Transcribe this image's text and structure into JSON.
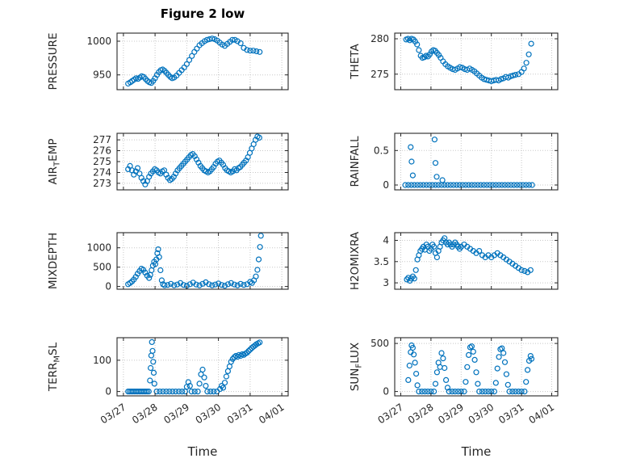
{
  "title": "Figure 2 low",
  "marker_color": "#0072BD",
  "x_axis": {
    "label": "Time",
    "lim": [
      -0.2,
      5.2
    ],
    "tick_values": [
      0,
      1,
      2,
      3,
      4,
      5
    ],
    "tick_labels": [
      "03/27",
      "03/28",
      "03/29",
      "03/30",
      "03/31",
      "04/01"
    ]
  },
  "chart_data": [
    {
      "name": "pressure",
      "type": "scatter",
      "ylabel_pre": "PRESSURE",
      "ylabel_sub": "",
      "ylabel_post": "",
      "ylim": [
        928,
        1012
      ],
      "yticks": [
        950,
        1000
      ],
      "x": [
        0.15,
        0.22,
        0.28,
        0.34,
        0.4,
        0.46,
        0.52,
        0.58,
        0.64,
        0.7,
        0.76,
        0.82,
        0.88,
        0.94,
        1.0,
        1.06,
        1.12,
        1.18,
        1.24,
        1.3,
        1.36,
        1.42,
        1.48,
        1.54,
        1.6,
        1.68,
        1.76,
        1.84,
        1.92,
        2.0,
        2.08,
        2.16,
        2.24,
        2.32,
        2.4,
        2.48,
        2.56,
        2.64,
        2.72,
        2.8,
        2.88,
        2.96,
        3.04,
        3.12,
        3.2,
        3.28,
        3.36,
        3.44,
        3.52,
        3.6,
        3.7,
        3.8,
        3.9,
        4.0,
        4.1,
        4.2,
        4.3
      ],
      "y": [
        937,
        939,
        941,
        943,
        945,
        944,
        946,
        948,
        947,
        944,
        941,
        939,
        938,
        941,
        945,
        950,
        954,
        957,
        958,
        956,
        953,
        950,
        947,
        945,
        946,
        949,
        953,
        957,
        961,
        966,
        972,
        978,
        984,
        989,
        994,
        997,
        1000,
        1002,
        1003,
        1004,
        1003,
        1001,
        998,
        995,
        993,
        996,
        999,
        1002,
        1002,
        1000,
        997,
        990,
        987,
        986,
        986,
        985,
        984
      ]
    },
    {
      "name": "theta",
      "type": "scatter",
      "ylabel_pre": "THETA",
      "ylabel_sub": "",
      "ylabel_post": "",
      "ylim": [
        272.8,
        280.8
      ],
      "yticks": [
        275,
        280
      ],
      "x": [
        0.18,
        0.24,
        0.3,
        0.36,
        0.42,
        0.48,
        0.54,
        0.6,
        0.66,
        0.72,
        0.78,
        0.84,
        0.9,
        0.96,
        1.02,
        1.08,
        1.14,
        1.2,
        1.26,
        1.32,
        1.4,
        1.48,
        1.56,
        1.64,
        1.72,
        1.8,
        1.88,
        1.96,
        2.04,
        2.12,
        2.2,
        2.28,
        2.36,
        2.44,
        2.52,
        2.6,
        2.68,
        2.76,
        2.84,
        2.92,
        3.0,
        3.08,
        3.16,
        3.24,
        3.32,
        3.4,
        3.48,
        3.56,
        3.64,
        3.72,
        3.8,
        3.9,
        4.0,
        4.08,
        4.16,
        4.24,
        4.32
      ],
      "y": [
        279.9,
        280.0,
        279.8,
        280.0,
        279.9,
        279.6,
        279.2,
        278.4,
        277.6,
        277.3,
        277.4,
        277.6,
        277.5,
        277.8,
        278.2,
        278.4,
        278.3,
        278.0,
        277.7,
        277.3,
        276.8,
        276.4,
        276.1,
        275.9,
        275.7,
        275.6,
        275.8,
        276.0,
        275.9,
        275.7,
        275.6,
        275.8,
        275.6,
        275.4,
        275.1,
        274.8,
        274.5,
        274.3,
        274.2,
        274.1,
        274.0,
        274.1,
        274.2,
        274.1,
        274.3,
        274.4,
        274.6,
        274.5,
        274.7,
        274.8,
        274.9,
        275.0,
        275.3,
        275.8,
        276.6,
        277.8,
        279.3
      ]
    },
    {
      "name": "air_temp",
      "type": "scatter",
      "ylabel_pre": "AIR",
      "ylabel_sub": "T",
      "ylabel_post": "EMP",
      "ylim": [
        272.4,
        277.6
      ],
      "yticks": [
        273,
        274,
        275,
        276,
        277
      ],
      "x": [
        0.15,
        0.21,
        0.27,
        0.33,
        0.39,
        0.45,
        0.51,
        0.57,
        0.63,
        0.69,
        0.75,
        0.81,
        0.87,
        0.93,
        0.99,
        1.05,
        1.11,
        1.17,
        1.23,
        1.29,
        1.35,
        1.41,
        1.47,
        1.53,
        1.59,
        1.65,
        1.71,
        1.77,
        1.83,
        1.89,
        1.95,
        2.01,
        2.07,
        2.13,
        2.19,
        2.25,
        2.31,
        2.37,
        2.43,
        2.49,
        2.55,
        2.61,
        2.67,
        2.73,
        2.79,
        2.85,
        2.91,
        2.97,
        3.03,
        3.09,
        3.15,
        3.21,
        3.27,
        3.33,
        3.39,
        3.45,
        3.51,
        3.57,
        3.63,
        3.69,
        3.75,
        3.81,
        3.87,
        3.93,
        3.99,
        4.05,
        4.11,
        4.17,
        4.23,
        4.29
      ],
      "y": [
        274.3,
        274.6,
        274.2,
        273.8,
        274.1,
        274.4,
        273.9,
        273.5,
        273.2,
        272.9,
        273.2,
        273.6,
        273.9,
        274.1,
        274.3,
        274.2,
        274.0,
        273.9,
        274.1,
        274.2,
        273.8,
        273.5,
        273.3,
        273.4,
        273.6,
        273.9,
        274.2,
        274.4,
        274.6,
        274.8,
        275.0,
        275.2,
        275.4,
        275.6,
        275.7,
        275.5,
        275.2,
        274.9,
        274.6,
        274.4,
        274.2,
        274.1,
        274.0,
        274.1,
        274.3,
        274.5,
        274.8,
        275.0,
        275.1,
        274.9,
        274.7,
        274.4,
        274.2,
        274.1,
        274.0,
        274.1,
        274.3,
        274.2,
        274.4,
        274.5,
        274.7,
        274.9,
        275.1,
        275.4,
        275.8,
        276.2,
        276.6,
        277.0,
        277.3,
        277.2
      ]
    },
    {
      "name": "rainfall",
      "type": "scatter",
      "ylabel_pre": "RAINFALL",
      "ylabel_sub": "",
      "ylabel_post": "",
      "ylim": [
        -0.07,
        0.75
      ],
      "yticks": [
        0,
        0.5
      ],
      "x": [
        0.15,
        0.25,
        0.35,
        0.45,
        0.55,
        0.65,
        0.75,
        0.85,
        0.95,
        1.05,
        1.15,
        1.25,
        1.35,
        1.45,
        1.55,
        1.65,
        1.75,
        1.85,
        1.95,
        2.05,
        2.15,
        2.25,
        2.35,
        2.45,
        2.55,
        2.65,
        2.75,
        2.85,
        2.95,
        3.05,
        3.15,
        3.25,
        3.35,
        3.45,
        3.55,
        3.65,
        3.75,
        3.85,
        3.95,
        4.05,
        4.15,
        4.25,
        4.35,
        0.33,
        0.36,
        0.4,
        1.12,
        1.15,
        1.19,
        1.38
      ],
      "y": [
        0,
        0,
        0,
        0,
        0,
        0,
        0,
        0,
        0,
        0,
        0,
        0,
        0,
        0,
        0,
        0,
        0,
        0,
        0,
        0,
        0,
        0,
        0,
        0,
        0,
        0,
        0,
        0,
        0,
        0,
        0,
        0,
        0,
        0,
        0,
        0,
        0,
        0,
        0,
        0,
        0,
        0,
        0,
        0.55,
        0.34,
        0.14,
        0.66,
        0.32,
        0.12,
        0.07
      ]
    },
    {
      "name": "mixdepth",
      "type": "scatter",
      "ylabel_pre": "MIXDEPTH",
      "ylabel_sub": "",
      "ylabel_post": "",
      "ylim": [
        -70,
        1390
      ],
      "yticks": [
        0,
        500,
        1000
      ],
      "x": [
        0.15,
        0.21,
        0.27,
        0.33,
        0.39,
        0.45,
        0.51,
        0.57,
        0.63,
        0.69,
        0.75,
        0.81,
        0.85,
        0.89,
        0.93,
        0.97,
        1.01,
        1.04,
        1.07,
        1.1,
        1.13,
        1.17,
        1.21,
        1.25,
        1.3,
        1.4,
        1.5,
        1.6,
        1.7,
        1.8,
        1.9,
        2.0,
        2.1,
        2.2,
        2.3,
        2.4,
        2.5,
        2.6,
        2.7,
        2.8,
        2.9,
        3.0,
        3.1,
        3.2,
        3.3,
        3.4,
        3.5,
        3.6,
        3.7,
        3.8,
        3.9,
        4.0,
        4.06,
        4.12,
        4.18,
        4.23,
        4.27,
        4.31,
        4.34
      ],
      "y": [
        60,
        90,
        130,
        180,
        250,
        330,
        400,
        460,
        430,
        360,
        280,
        220,
        300,
        420,
        540,
        640,
        580,
        700,
        860,
        960,
        760,
        420,
        160,
        60,
        30,
        40,
        70,
        30,
        50,
        90,
        40,
        20,
        60,
        100,
        50,
        30,
        70,
        110,
        60,
        30,
        50,
        80,
        40,
        20,
        60,
        90,
        50,
        30,
        70,
        40,
        60,
        120,
        90,
        160,
        260,
        430,
        700,
        1020,
        1310
      ]
    },
    {
      "name": "h2omixra",
      "type": "scatter",
      "ylabel_pre": "H2OMIXRA",
      "ylabel_sub": "",
      "ylabel_post": "",
      "ylim": [
        2.85,
        4.18
      ],
      "yticks": [
        3,
        3.5,
        4
      ],
      "x": [
        0.2,
        0.25,
        0.3,
        0.35,
        0.4,
        0.45,
        0.5,
        0.55,
        0.6,
        0.65,
        0.7,
        0.75,
        0.8,
        0.85,
        0.9,
        0.95,
        1.0,
        1.05,
        1.1,
        1.15,
        1.2,
        1.25,
        1.3,
        1.35,
        1.4,
        1.45,
        1.5,
        1.55,
        1.6,
        1.65,
        1.7,
        1.75,
        1.8,
        1.85,
        1.9,
        1.95,
        2.0,
        2.1,
        2.2,
        2.3,
        2.4,
        2.5,
        2.6,
        2.7,
        2.8,
        2.9,
        3.0,
        3.1,
        3.2,
        3.3,
        3.4,
        3.5,
        3.6,
        3.7,
        3.8,
        3.9,
        4.0,
        4.1,
        4.2,
        4.3
      ],
      "y": [
        3.08,
        3.12,
        3.05,
        3.1,
        3.15,
        3.1,
        3.3,
        3.55,
        3.65,
        3.75,
        3.8,
        3.85,
        3.78,
        3.9,
        3.85,
        3.75,
        3.8,
        3.9,
        3.85,
        3.7,
        3.6,
        3.75,
        3.85,
        3.95,
        4.0,
        4.05,
        3.95,
        3.9,
        3.95,
        3.9,
        3.85,
        3.9,
        3.95,
        3.9,
        3.85,
        3.8,
        3.85,
        3.9,
        3.85,
        3.8,
        3.75,
        3.7,
        3.75,
        3.65,
        3.6,
        3.65,
        3.6,
        3.65,
        3.7,
        3.65,
        3.6,
        3.55,
        3.5,
        3.45,
        3.4,
        3.35,
        3.3,
        3.28,
        3.25,
        3.3
      ]
    },
    {
      "name": "terr_msl",
      "type": "scatter",
      "ylabel_pre": "TERR",
      "ylabel_sub": "M",
      "ylabel_post": "SL",
      "ylim": [
        -14,
        172
      ],
      "yticks": [
        0,
        100
      ],
      "x": [
        0.15,
        0.2,
        0.25,
        0.3,
        0.35,
        0.4,
        0.45,
        0.5,
        0.55,
        0.6,
        0.65,
        0.7,
        0.75,
        0.8,
        0.84,
        0.86,
        0.88,
        0.9,
        0.92,
        0.94,
        0.96,
        0.98,
        1.05,
        1.15,
        1.25,
        1.35,
        1.45,
        1.55,
        1.65,
        1.75,
        1.85,
        1.95,
        2.0,
        2.05,
        2.1,
        2.15,
        2.25,
        2.35,
        2.4,
        2.45,
        2.5,
        2.55,
        2.6,
        2.65,
        2.75,
        2.85,
        2.95,
        3.05,
        3.1,
        3.15,
        3.2,
        3.25,
        3.3,
        3.35,
        3.4,
        3.45,
        3.5,
        3.55,
        3.6,
        3.65,
        3.7,
        3.75,
        3.8,
        3.85,
        3.9,
        3.95,
        4.0,
        4.05,
        4.1,
        4.15,
        4.2,
        4.25,
        4.3
      ],
      "y": [
        0,
        0,
        0,
        0,
        0,
        0,
        0,
        0,
        0,
        0,
        0,
        0,
        0,
        0,
        35,
        75,
        115,
        158,
        130,
        95,
        60,
        25,
        0,
        0,
        0,
        0,
        0,
        0,
        0,
        0,
        0,
        0,
        15,
        30,
        18,
        0,
        0,
        0,
        25,
        55,
        70,
        45,
        18,
        0,
        0,
        0,
        0,
        8,
        18,
        12,
        28,
        48,
        65,
        80,
        95,
        104,
        110,
        114,
        111,
        117,
        114,
        119,
        117,
        121,
        124,
        129,
        134,
        139,
        143,
        147,
        151,
        154,
        157
      ]
    },
    {
      "name": "sun_flux",
      "type": "scatter",
      "ylabel_pre": "SUN",
      "ylabel_sub": "F",
      "ylabel_post": "LUX",
      "ylim": [
        -45,
        560
      ],
      "yticks": [
        0,
        500
      ],
      "x": [
        0.25,
        0.29,
        0.33,
        0.36,
        0.4,
        0.43,
        0.47,
        0.51,
        0.55,
        0.6,
        0.7,
        0.8,
        0.9,
        1.0,
        1.1,
        1.15,
        1.2,
        1.25,
        1.3,
        1.35,
        1.4,
        1.45,
        1.5,
        1.55,
        1.6,
        1.7,
        1.8,
        1.9,
        2.0,
        2.1,
        2.15,
        2.2,
        2.25,
        2.3,
        2.35,
        2.4,
        2.45,
        2.5,
        2.55,
        2.6,
        2.7,
        2.8,
        2.9,
        3.0,
        3.1,
        3.15,
        3.2,
        3.25,
        3.3,
        3.35,
        3.4,
        3.45,
        3.5,
        3.55,
        3.6,
        3.7,
        3.8,
        3.9,
        4.0,
        4.1,
        4.15,
        4.2,
        4.25,
        4.3,
        4.33
      ],
      "y": [
        120,
        270,
        410,
        480,
        455,
        385,
        300,
        185,
        65,
        0,
        0,
        0,
        0,
        0,
        0,
        80,
        200,
        300,
        255,
        400,
        345,
        245,
        120,
        40,
        0,
        0,
        0,
        0,
        0,
        0,
        100,
        255,
        380,
        460,
        470,
        415,
        330,
        200,
        80,
        0,
        0,
        0,
        0,
        0,
        0,
        90,
        240,
        360,
        440,
        450,
        400,
        305,
        180,
        70,
        0,
        0,
        0,
        0,
        0,
        0,
        100,
        225,
        320,
        370,
        340
      ]
    }
  ]
}
